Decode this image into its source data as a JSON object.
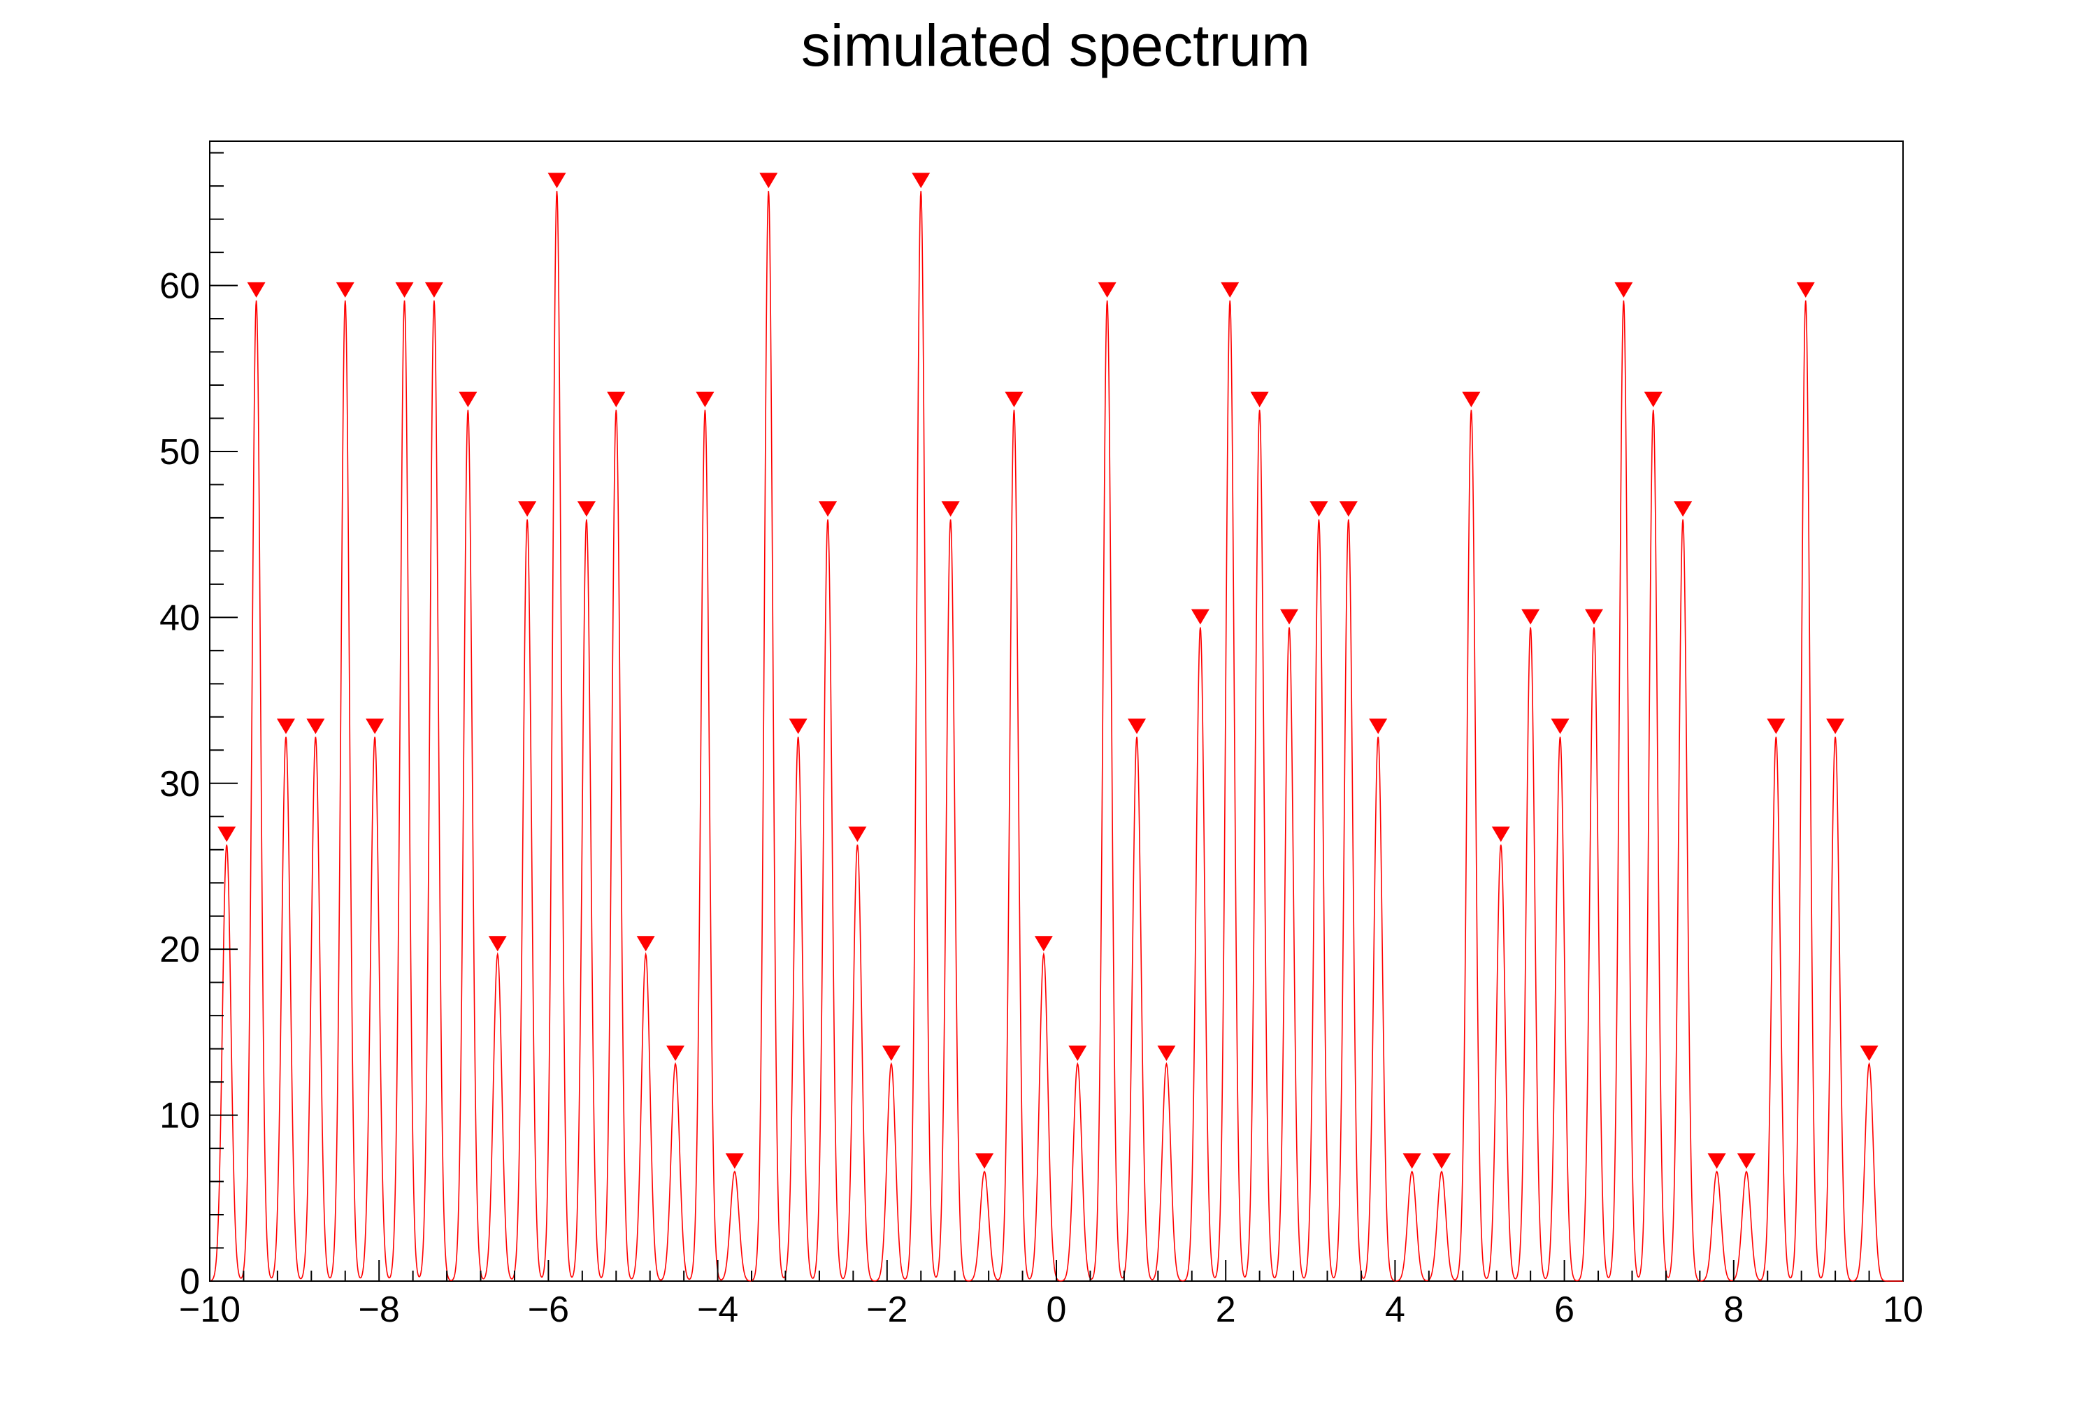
{
  "colors": {
    "series": "#ff0000",
    "marker": "#ff0000",
    "axis": "#000000"
  },
  "chart_data": {
    "type": "line",
    "title": "simulated spectrum",
    "xlabel": "",
    "ylabel": "",
    "xlim": [
      -10,
      10
    ],
    "ylim": [
      0,
      68.7
    ],
    "grid": false,
    "legend": "none",
    "x_ticks": [
      -10,
      -8,
      -6,
      -4,
      -2,
      0,
      2,
      4,
      6,
      8,
      10
    ],
    "x_tick_labels": [
      "−10",
      "−8",
      "−6",
      "−4",
      "−2",
      "0",
      "2",
      "4",
      "6",
      "8",
      "10"
    ],
    "y_ticks": [
      0,
      10,
      20,
      30,
      40,
      50,
      60
    ],
    "y_tick_labels": [
      "0",
      "10",
      "20",
      "30",
      "40",
      "50",
      "60"
    ],
    "peak_width_sigma": 0.05,
    "peaks": [
      {
        "x": -9.8,
        "y": 26.3
      },
      {
        "x": -9.45,
        "y": 59.1
      },
      {
        "x": -9.1,
        "y": 32.8
      },
      {
        "x": -8.75,
        "y": 32.8
      },
      {
        "x": -8.4,
        "y": 59.1
      },
      {
        "x": -8.05,
        "y": 32.8
      },
      {
        "x": -7.7,
        "y": 59.1
      },
      {
        "x": -7.35,
        "y": 59.1
      },
      {
        "x": -6.95,
        "y": 52.5
      },
      {
        "x": -6.6,
        "y": 19.7
      },
      {
        "x": -6.25,
        "y": 45.9
      },
      {
        "x": -5.9,
        "y": 65.7
      },
      {
        "x": -5.55,
        "y": 45.9
      },
      {
        "x": -5.2,
        "y": 52.5
      },
      {
        "x": -4.85,
        "y": 19.7
      },
      {
        "x": -4.5,
        "y": 13.1
      },
      {
        "x": -4.15,
        "y": 52.5
      },
      {
        "x": -3.8,
        "y": 6.6
      },
      {
        "x": -3.4,
        "y": 65.7
      },
      {
        "x": -3.05,
        "y": 32.8
      },
      {
        "x": -2.7,
        "y": 45.9
      },
      {
        "x": -2.35,
        "y": 26.3
      },
      {
        "x": -1.95,
        "y": 13.1
      },
      {
        "x": -1.6,
        "y": 65.7
      },
      {
        "x": -1.25,
        "y": 45.9
      },
      {
        "x": -0.85,
        "y": 6.6
      },
      {
        "x": -0.5,
        "y": 52.5
      },
      {
        "x": -0.15,
        "y": 19.7
      },
      {
        "x": 0.25,
        "y": 13.1
      },
      {
        "x": 0.6,
        "y": 59.1
      },
      {
        "x": 0.95,
        "y": 32.8
      },
      {
        "x": 1.3,
        "y": 13.1
      },
      {
        "x": 1.7,
        "y": 39.4
      },
      {
        "x": 2.05,
        "y": 59.1
      },
      {
        "x": 2.4,
        "y": 52.5
      },
      {
        "x": 2.75,
        "y": 39.4
      },
      {
        "x": 3.1,
        "y": 45.9
      },
      {
        "x": 3.45,
        "y": 45.9
      },
      {
        "x": 3.8,
        "y": 32.8
      },
      {
        "x": 4.2,
        "y": 6.6
      },
      {
        "x": 4.55,
        "y": 6.6
      },
      {
        "x": 4.9,
        "y": 52.5
      },
      {
        "x": 5.25,
        "y": 26.3
      },
      {
        "x": 5.6,
        "y": 39.4
      },
      {
        "x": 5.95,
        "y": 32.8
      },
      {
        "x": 6.35,
        "y": 39.4
      },
      {
        "x": 6.7,
        "y": 59.1
      },
      {
        "x": 7.05,
        "y": 52.5
      },
      {
        "x": 7.4,
        "y": 45.9
      },
      {
        "x": 7.8,
        "y": 6.6
      },
      {
        "x": 8.15,
        "y": 6.6
      },
      {
        "x": 8.5,
        "y": 32.8
      },
      {
        "x": 8.85,
        "y": 59.1
      },
      {
        "x": 9.2,
        "y": 32.8
      },
      {
        "x": 9.6,
        "y": 13.1
      }
    ]
  }
}
